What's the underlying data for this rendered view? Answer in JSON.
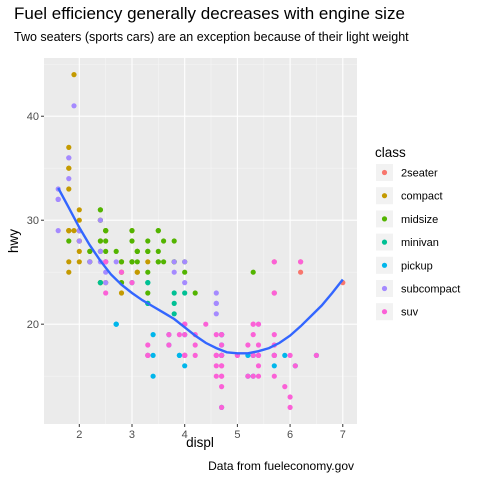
{
  "chart_data": {
    "type": "scatter",
    "title": "Fuel efficiency generally decreases with engine size",
    "subtitle": "Two seaters (sports cars) are an exception because of their light weight",
    "caption": "Data from fueleconomy.gov",
    "xlabel": "displ",
    "ylabel": "hwy",
    "xlim": [
      1.33,
      7.27
    ],
    "ylim": [
      10.4,
      45.6
    ],
    "x_ticks": [
      2,
      3,
      4,
      5,
      6,
      7
    ],
    "y_ticks": [
      20,
      30,
      40
    ],
    "grid": true,
    "legend": {
      "title": "class",
      "placement": "right",
      "entries": [
        {
          "name": "2seater",
          "color": "#F8766D"
        },
        {
          "name": "compact",
          "color": "#C49A00"
        },
        {
          "name": "midsize",
          "color": "#53B400"
        },
        {
          "name": "minivan",
          "color": "#00C094"
        },
        {
          "name": "pickup",
          "color": "#00B6EB"
        },
        {
          "name": "subcompact",
          "color": "#A58AFF"
        },
        {
          "name": "suv",
          "color": "#FB61D7"
        }
      ]
    },
    "series": [
      {
        "name": "2seater",
        "color": "#F8766D",
        "points": [
          [
            5.7,
            26
          ],
          [
            5.7,
            23
          ],
          [
            6.2,
            26
          ],
          [
            6.2,
            25
          ],
          [
            7.0,
            24
          ]
        ]
      },
      {
        "name": "compact",
        "color": "#C49A00",
        "points": [
          [
            1.8,
            29
          ],
          [
            1.8,
            29
          ],
          [
            2.0,
            31
          ],
          [
            2.0,
            30
          ],
          [
            2.8,
            26
          ],
          [
            2.8,
            26
          ],
          [
            3.1,
            27
          ],
          [
            1.8,
            26
          ],
          [
            1.8,
            25
          ],
          [
            2.0,
            28
          ],
          [
            2.0,
            27
          ],
          [
            2.8,
            25
          ],
          [
            2.8,
            25
          ],
          [
            3.1,
            25
          ],
          [
            3.1,
            25
          ],
          [
            2.2,
            26
          ],
          [
            2.2,
            27
          ],
          [
            2.4,
            30
          ],
          [
            2.4,
            28
          ],
          [
            3.0,
            26
          ],
          [
            3.0,
            29
          ],
          [
            3.3,
            26
          ],
          [
            1.8,
            33
          ],
          [
            1.8,
            35
          ],
          [
            1.8,
            37
          ],
          [
            1.8,
            35
          ],
          [
            1.9,
            44
          ],
          [
            2.0,
            29
          ],
          [
            2.0,
            26
          ],
          [
            2.5,
            29
          ],
          [
            2.5,
            29
          ],
          [
            2.5,
            24
          ],
          [
            2.8,
            23
          ],
          [
            2.8,
            24
          ],
          [
            1.9,
            29
          ],
          [
            1.8,
            29
          ],
          [
            2.0,
            28
          ],
          [
            2.0,
            29
          ]
        ]
      },
      {
        "name": "midsize",
        "color": "#53B400",
        "points": [
          [
            2.8,
            26
          ],
          [
            3.1,
            26
          ],
          [
            4.2,
            23
          ],
          [
            2.4,
            24
          ],
          [
            2.4,
            24
          ],
          [
            3.1,
            27
          ],
          [
            3.5,
            26
          ],
          [
            3.6,
            26
          ],
          [
            2.5,
            26
          ],
          [
            2.5,
            27
          ],
          [
            3.3,
            28
          ],
          [
            3.3,
            27
          ],
          [
            3.8,
            26
          ],
          [
            3.8,
            26
          ],
          [
            3.8,
            28
          ],
          [
            5.3,
            25
          ],
          [
            2.4,
            27
          ],
          [
            2.4,
            30
          ],
          [
            3.5,
            29
          ],
          [
            3.5,
            29
          ],
          [
            2.5,
            28
          ],
          [
            2.5,
            29
          ],
          [
            3.0,
            29
          ],
          [
            3.0,
            28
          ],
          [
            3.5,
            26
          ],
          [
            3.3,
            27
          ],
          [
            3.3,
            25
          ],
          [
            2.4,
            31
          ],
          [
            2.4,
            31
          ],
          [
            3.0,
            26
          ],
          [
            3.0,
            26
          ],
          [
            3.5,
            27
          ],
          [
            1.8,
            28
          ],
          [
            2.4,
            28
          ],
          [
            2.0,
            29
          ],
          [
            2.2,
            27
          ],
          [
            2.2,
            26
          ],
          [
            2.5,
            29
          ],
          [
            2.7,
            27
          ],
          [
            2.8,
            24
          ],
          [
            3.1,
            27
          ],
          [
            3.3,
            23
          ],
          [
            3.6,
            28
          ],
          [
            4.0,
            26
          ],
          [
            4.0,
            25
          ]
        ]
      },
      {
        "name": "minivan",
        "color": "#00C094",
        "points": [
          [
            2.4,
            24
          ],
          [
            3.0,
            24
          ],
          [
            3.3,
            22
          ],
          [
            3.3,
            22
          ],
          [
            3.3,
            24
          ],
          [
            3.3,
            24
          ],
          [
            3.3,
            17
          ],
          [
            3.8,
            22
          ],
          [
            3.8,
            21
          ],
          [
            3.8,
            23
          ],
          [
            4.0,
            23
          ]
        ]
      },
      {
        "name": "pickup",
        "color": "#00B6EB",
        "points": [
          [
            3.7,
            19
          ],
          [
            3.7,
            18
          ],
          [
            3.9,
            17
          ],
          [
            3.9,
            17
          ],
          [
            4.7,
            19
          ],
          [
            4.7,
            19
          ],
          [
            4.7,
            12
          ],
          [
            5.2,
            17
          ],
          [
            5.2,
            15
          ],
          [
            5.7,
            17
          ],
          [
            5.9,
            17
          ],
          [
            4.7,
            17
          ],
          [
            4.7,
            17
          ],
          [
            4.7,
            17
          ],
          [
            5.7,
            17
          ],
          [
            6.1,
            16
          ],
          [
            5.3,
            17
          ],
          [
            5.3,
            15
          ],
          [
            5.3,
            17
          ],
          [
            5.7,
            16
          ],
          [
            6.5,
            17
          ],
          [
            2.7,
            20
          ],
          [
            2.7,
            20
          ],
          [
            2.7,
            20
          ],
          [
            3.4,
            17
          ],
          [
            3.4,
            19
          ],
          [
            4.0,
            20
          ],
          [
            4.0,
            17
          ],
          [
            4.0,
            19
          ],
          [
            4.7,
            18
          ],
          [
            4.7,
            19
          ],
          [
            3.4,
            15
          ],
          [
            4.0,
            16
          ]
        ]
      },
      {
        "name": "subcompact",
        "color": "#A58AFF",
        "points": [
          [
            3.8,
            26
          ],
          [
            3.8,
            25
          ],
          [
            4.0,
            26
          ],
          [
            4.0,
            24
          ],
          [
            4.6,
            21
          ],
          [
            4.6,
            22
          ],
          [
            4.6,
            23
          ],
          [
            4.6,
            22
          ],
          [
            5.4,
            20
          ],
          [
            1.6,
            33
          ],
          [
            1.6,
            32
          ],
          [
            1.6,
            32
          ],
          [
            1.6,
            29
          ],
          [
            1.6,
            32
          ],
          [
            1.8,
            34
          ],
          [
            1.8,
            36
          ],
          [
            1.8,
            36
          ],
          [
            2.0,
            29
          ],
          [
            2.4,
            26
          ],
          [
            2.4,
            27
          ],
          [
            2.4,
            30
          ],
          [
            2.5,
            26
          ],
          [
            2.5,
            25
          ],
          [
            1.9,
            41
          ],
          [
            2.2,
            26
          ],
          [
            2.5,
            26
          ],
          [
            2.0,
            29
          ],
          [
            2.0,
            28
          ],
          [
            2.0,
            29
          ],
          [
            2.5,
            24
          ],
          [
            2.7,
            26
          ]
        ]
      },
      {
        "name": "suv",
        "color": "#FB61D7",
        "points": [
          [
            5.3,
            20
          ],
          [
            5.3,
            15
          ],
          [
            5.3,
            20
          ],
          [
            5.7,
            17
          ],
          [
            6.0,
            17
          ],
          [
            5.7,
            26
          ],
          [
            5.7,
            23
          ],
          [
            6.2,
            26
          ],
          [
            6.5,
            17
          ],
          [
            4.7,
            17
          ],
          [
            4.7,
            12
          ],
          [
            4.7,
            19
          ],
          [
            3.0,
            24
          ],
          [
            3.7,
            19
          ],
          [
            3.7,
            18
          ],
          [
            4.2,
            18
          ],
          [
            4.2,
            19
          ],
          [
            4.6,
            17
          ],
          [
            4.6,
            17
          ],
          [
            4.6,
            16
          ],
          [
            5.4,
            17
          ],
          [
            5.4,
            17
          ],
          [
            5.4,
            18
          ],
          [
            4.0,
            17
          ],
          [
            4.0,
            17
          ],
          [
            4.6,
            19
          ],
          [
            5.4,
            17
          ],
          [
            5.4,
            20
          ],
          [
            2.5,
            23
          ],
          [
            2.5,
            26
          ],
          [
            3.3,
            17
          ],
          [
            4.4,
            20
          ],
          [
            4.7,
            15
          ],
          [
            5.7,
            15
          ],
          [
            4.0,
            17
          ],
          [
            4.0,
            19
          ],
          [
            4.0,
            20
          ],
          [
            2.8,
            25
          ],
          [
            3.9,
            19
          ],
          [
            4.7,
            16
          ],
          [
            4.7,
            18
          ],
          [
            5.3,
            17
          ],
          [
            5.3,
            19
          ],
          [
            5.7,
            19
          ],
          [
            5.7,
            17
          ],
          [
            6.1,
            16
          ],
          [
            4.2,
            17
          ],
          [
            4.6,
            17
          ],
          [
            5.0,
            17
          ],
          [
            5.0,
            17
          ],
          [
            5.4,
            16
          ],
          [
            5.9,
            14
          ],
          [
            4.0,
            20
          ],
          [
            4.0,
            17
          ],
          [
            4.7,
            16
          ],
          [
            4.7,
            17
          ],
          [
            5.7,
            17
          ],
          [
            4.7,
            19
          ],
          [
            5.7,
            18
          ],
          [
            6.0,
            13
          ],
          [
            6.0,
            12
          ],
          [
            5.2,
            15
          ],
          [
            5.2,
            18
          ],
          [
            4.7,
            15
          ],
          [
            4.7,
            14
          ],
          [
            3.3,
            18
          ],
          [
            3.3,
            17
          ],
          [
            4.0,
            20
          ],
          [
            4.0,
            17
          ],
          [
            4.6,
            15
          ],
          [
            5.4,
            15
          ]
        ]
      }
    ],
    "smooth": {
      "color": "#3366FF",
      "method": "loess",
      "points": [
        [
          1.6,
          33.1
        ],
        [
          1.8,
          31.2
        ],
        [
          2.0,
          29.3
        ],
        [
          2.2,
          27.6
        ],
        [
          2.4,
          26.1
        ],
        [
          2.6,
          24.8
        ],
        [
          2.8,
          23.8
        ],
        [
          3.0,
          23.0
        ],
        [
          3.2,
          22.3
        ],
        [
          3.4,
          21.7
        ],
        [
          3.6,
          21.1
        ],
        [
          3.8,
          20.5
        ],
        [
          4.0,
          19.7
        ],
        [
          4.2,
          18.9
        ],
        [
          4.4,
          18.2
        ],
        [
          4.6,
          17.7
        ],
        [
          4.8,
          17.3
        ],
        [
          5.0,
          17.2
        ],
        [
          5.2,
          17.2
        ],
        [
          5.4,
          17.4
        ],
        [
          5.6,
          17.7
        ],
        [
          5.8,
          18.2
        ],
        [
          6.0,
          18.9
        ],
        [
          6.2,
          19.8
        ],
        [
          6.4,
          20.8
        ],
        [
          6.6,
          21.8
        ],
        [
          6.8,
          23.0
        ],
        [
          7.0,
          24.3
        ]
      ]
    }
  }
}
